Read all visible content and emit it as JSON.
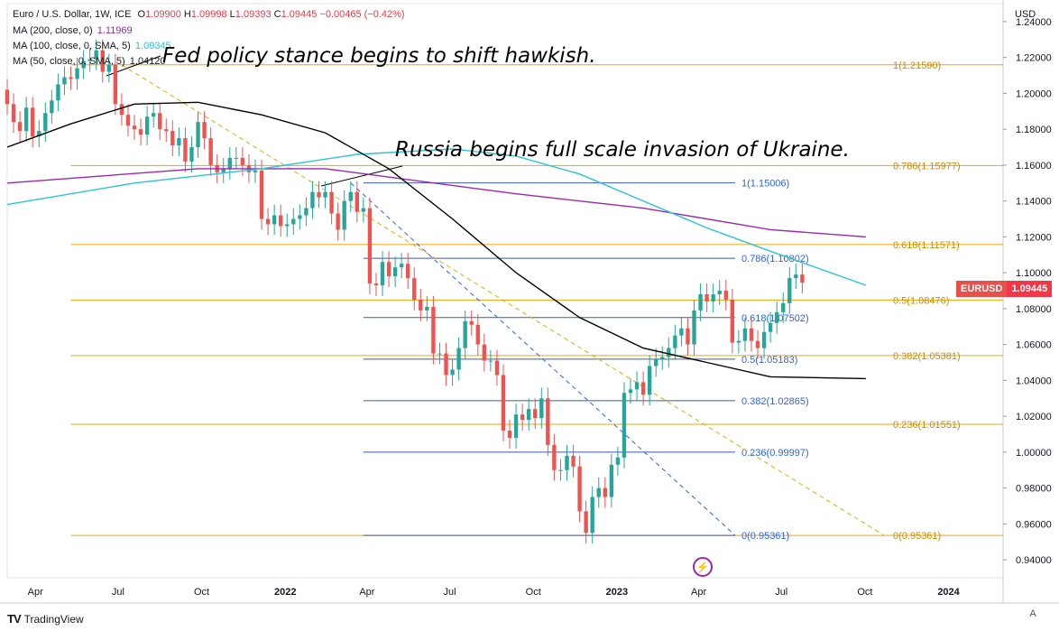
{
  "header": {
    "symbol_line": "Euro / U.S. Dollar, 1W, ICE",
    "ohlc": {
      "o_label": "O",
      "o": "1.09900",
      "h_label": "H",
      "h": "1.09998",
      "l_label": "L",
      "l": "1.09393",
      "c_label": "C",
      "c": "1.09445",
      "change": "−0.00465 (−0.42%)"
    },
    "ma200": {
      "label": "MA (200, close, 0)",
      "value": "1.11969"
    },
    "ma100": {
      "label": "MA (100, close, 0, SMA, 5)",
      "value": "1.09345"
    },
    "ma50": {
      "label": "MA (50, close, 0, SMA, 5)",
      "value": "1.04120"
    }
  },
  "annotations": {
    "fed": "Fed policy stance begins to shift hawkish.",
    "russia": "Russia begins full scale invasion of Ukraine."
  },
  "axis": {
    "currency": "USD",
    "auto": "A",
    "symbol_badge": "EURUSD",
    "price_badge": "1.09445"
  },
  "branding": {
    "name": "TradingView"
  },
  "colors": {
    "up": "#26a69a",
    "down": "#ef5350",
    "ma200": "#9c27b0",
    "ma100": "#26c6da",
    "ma50": "#000000",
    "fib_orange": "#f0a500",
    "fib_blue": "#2962ff"
  },
  "chart_data": {
    "type": "candlestick",
    "title": "Euro / U.S. Dollar, 1W, ICE",
    "ylim": [
      0.93,
      1.25
    ],
    "y_ticks": [
      "1.24000",
      "1.22000",
      "1.20000",
      "1.18000",
      "1.16000",
      "1.14000",
      "1.12000",
      "1.10000",
      "1.08000",
      "1.06000",
      "1.04000",
      "1.02000",
      "1.00000",
      "0.98000",
      "0.96000",
      "0.94000"
    ],
    "x_ticks": [
      {
        "label": "Apr",
        "date": "2021-04-01",
        "bold": false
      },
      {
        "label": "Jul",
        "date": "2021-07-01",
        "bold": false
      },
      {
        "label": "Oct",
        "date": "2021-10-01",
        "bold": false
      },
      {
        "label": "2022",
        "date": "2022-01-01",
        "bold": true
      },
      {
        "label": "Apr",
        "date": "2022-04-01",
        "bold": false
      },
      {
        "label": "Jul",
        "date": "2022-07-01",
        "bold": false
      },
      {
        "label": "Oct",
        "date": "2022-10-01",
        "bold": false
      },
      {
        "label": "2023",
        "date": "2023-01-01",
        "bold": true
      },
      {
        "label": "Apr",
        "date": "2023-04-01",
        "bold": false
      },
      {
        "label": "Jul",
        "date": "2023-07-01",
        "bold": false
      },
      {
        "label": "Oct",
        "date": "2023-10-01",
        "bold": false
      },
      {
        "label": "2024",
        "date": "2024-01-01",
        "bold": true
      }
    ],
    "x_range": [
      "2021-03-01",
      "2024-03-01"
    ],
    "candles_start": "2021-03-01",
    "candles_interval_days": 7,
    "closes": [
      1.194,
      1.184,
      1.179,
      1.192,
      1.176,
      1.179,
      1.189,
      1.196,
      1.205,
      1.209,
      1.208,
      1.214,
      1.218,
      1.219,
      1.224,
      1.212,
      1.216,
      1.194,
      1.188,
      1.182,
      1.18,
      1.177,
      1.187,
      1.189,
      1.18,
      1.179,
      1.171,
      1.175,
      1.162,
      1.17,
      1.184,
      1.175,
      1.16,
      1.156,
      1.158,
      1.164,
      1.164,
      1.16,
      1.156,
      1.157,
      1.13,
      1.127,
      1.132,
      1.126,
      1.127,
      1.13,
      1.132,
      1.136,
      1.145,
      1.142,
      1.145,
      1.133,
      1.124,
      1.14,
      1.145,
      1.134,
      1.136,
      1.094,
      1.093,
      1.106,
      1.098,
      1.103,
      1.105,
      1.097,
      1.085,
      1.079,
      1.081,
      1.055,
      1.055,
      1.043,
      1.046,
      1.058,
      1.073,
      1.071,
      1.06,
      1.051,
      1.051,
      1.043,
      1.012,
      1.008,
      1.021,
      1.018,
      1.024,
      1.019,
      1.03,
      1.004,
      0.99,
      0.99,
      0.998,
      0.992,
      0.967,
      0.955,
      0.975,
      0.98,
      0.975,
      0.993,
      0.997,
      1.033,
      1.035,
      1.039,
      1.032,
      1.048,
      1.052,
      1.053,
      1.058,
      1.065,
      1.069,
      1.06,
      1.079,
      1.088,
      1.084,
      1.088,
      1.09,
      1.085,
      1.061,
      1.062,
      1.069,
      1.062,
      1.058,
      1.067,
      1.072,
      1.078,
      1.083,
      1.097,
      1.099,
      1.0945
    ],
    "series": [
      {
        "name": "MA (200, close, 0)",
        "values": [
          [
            0,
            1.15
          ],
          [
            30,
            1.158
          ],
          [
            50,
            1.158
          ],
          [
            80,
            1.144
          ],
          [
            100,
            1.136
          ],
          [
            120,
            1.124
          ],
          [
            135,
            1.12
          ]
        ]
      },
      {
        "name": "MA (100, close, 0, SMA, 5)",
        "values": [
          [
            0,
            1.138
          ],
          [
            20,
            1.15
          ],
          [
            40,
            1.158
          ],
          [
            55,
            1.166
          ],
          [
            70,
            1.169
          ],
          [
            80,
            1.165
          ],
          [
            90,
            1.155
          ],
          [
            100,
            1.14
          ],
          [
            110,
            1.125
          ],
          [
            120,
            1.112
          ],
          [
            135,
            1.093
          ]
        ]
      },
      {
        "name": "MA (50, close, 0, SMA, 5)",
        "values": [
          [
            0,
            1.17
          ],
          [
            10,
            1.183
          ],
          [
            20,
            1.194
          ],
          [
            30,
            1.195
          ],
          [
            40,
            1.188
          ],
          [
            50,
            1.178
          ],
          [
            60,
            1.158
          ],
          [
            70,
            1.13
          ],
          [
            80,
            1.1
          ],
          [
            90,
            1.075
          ],
          [
            100,
            1.058
          ],
          [
            110,
            1.05
          ],
          [
            120,
            1.042
          ],
          [
            135,
            1.041
          ]
        ]
      }
    ],
    "fib_orange": [
      {
        "level": "1(1.21590)",
        "value": 1.2159
      },
      {
        "level": "0.786(1.15977)",
        "value": 1.15977
      },
      {
        "level": "0.618(1.11571)",
        "value": 1.11571
      },
      {
        "level": "0.5(1.08476)",
        "value": 1.08476
      },
      {
        "level": "0.382(1.05381)",
        "value": 1.05381
      },
      {
        "level": "0.236(1.01551)",
        "value": 1.01551
      },
      {
        "level": "0(0.95361)",
        "value": 0.95361
      }
    ],
    "fib_blue": [
      {
        "level": "1(1.15006)",
        "value": 1.15006
      },
      {
        "level": "0.786(1.10802)",
        "value": 1.10802
      },
      {
        "level": "0.618(1.07502)",
        "value": 1.07502
      },
      {
        "level": "0.5(1.05183)",
        "value": 1.05183
      },
      {
        "level": "0.382(1.02865)",
        "value": 1.02865
      },
      {
        "level": "0.236(0.99997)",
        "value": 0.99997
      },
      {
        "level": "0(0.95361)",
        "value": 0.95361
      }
    ]
  }
}
